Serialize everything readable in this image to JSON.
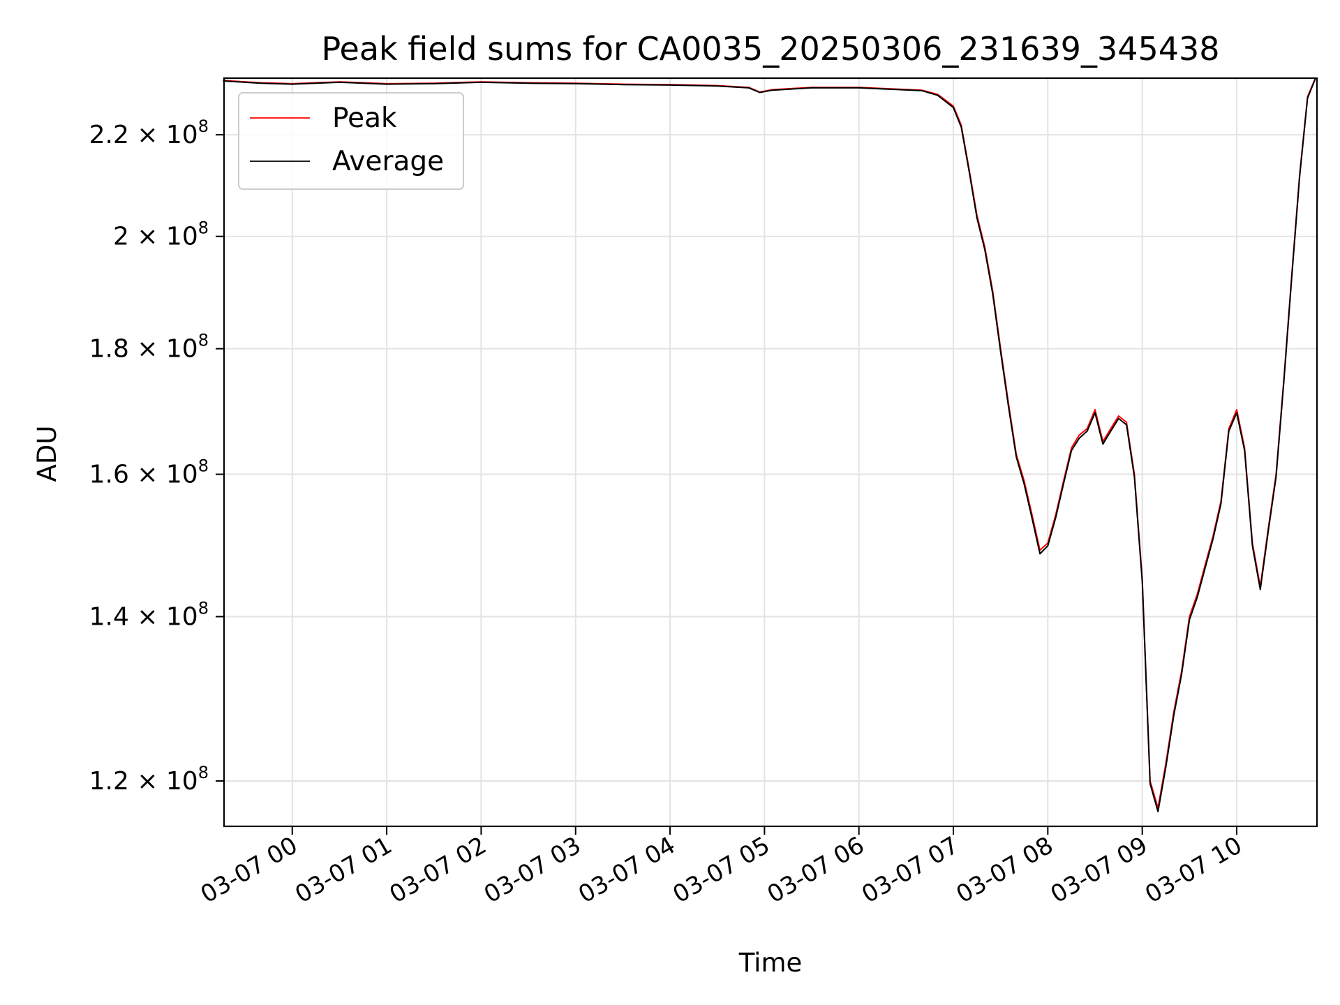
{
  "chart_data": {
    "type": "line",
    "title": "Peak field sums for CA0035_20250306_231639_345438",
    "xlabel": "Time",
    "ylabel": "ADU",
    "yscale": "log",
    "grid": true,
    "legend_position": "upper-left",
    "xlim": [
      "2025-03-06 23:16:39",
      "2025-03-07 10:51:00"
    ],
    "ylim": [
      115000000,
      232000000
    ],
    "x_ticks": [
      "2025-03-07 00:00",
      "2025-03-07 01:00",
      "2025-03-07 02:00",
      "2025-03-07 03:00",
      "2025-03-07 04:00",
      "2025-03-07 05:00",
      "2025-03-07 06:00",
      "2025-03-07 07:00",
      "2025-03-07 08:00",
      "2025-03-07 09:00",
      "2025-03-07 10:00"
    ],
    "x_tick_labels": [
      "03-07 00",
      "03-07 01",
      "03-07 02",
      "03-07 03",
      "03-07 04",
      "03-07 05",
      "03-07 06",
      "03-07 07",
      "03-07 08",
      "03-07 09",
      "03-07 10"
    ],
    "y_ticks": [
      120000000,
      140000000,
      160000000,
      180000000,
      200000000,
      220000000
    ],
    "y_tick_labels": [
      {
        "mantissa": "1.2",
        "exponent": "8"
      },
      {
        "mantissa": "1.4",
        "exponent": "8"
      },
      {
        "mantissa": "1.6",
        "exponent": "8"
      },
      {
        "mantissa": "1.8",
        "exponent": "8"
      },
      {
        "mantissa": "2",
        "exponent": "8"
      },
      {
        "mantissa": "2.2",
        "exponent": "8"
      }
    ],
    "series": [
      {
        "name": "Peak",
        "color": "#ff0000",
        "x": [
          "2025-03-06 23:16",
          "2025-03-06 23:40",
          "2025-03-07 00:00",
          "2025-03-07 00:30",
          "2025-03-07 01:00",
          "2025-03-07 01:30",
          "2025-03-07 02:00",
          "2025-03-07 02:30",
          "2025-03-07 03:00",
          "2025-03-07 03:30",
          "2025-03-07 04:00",
          "2025-03-07 04:30",
          "2025-03-07 04:50",
          "2025-03-07 04:57",
          "2025-03-07 05:05",
          "2025-03-07 05:30",
          "2025-03-07 06:00",
          "2025-03-07 06:20",
          "2025-03-07 06:40",
          "2025-03-07 06:50",
          "2025-03-07 07:00",
          "2025-03-07 07:05",
          "2025-03-07 07:10",
          "2025-03-07 07:15",
          "2025-03-07 07:20",
          "2025-03-07 07:25",
          "2025-03-07 07:30",
          "2025-03-07 07:35",
          "2025-03-07 07:40",
          "2025-03-07 07:45",
          "2025-03-07 07:50",
          "2025-03-07 07:55",
          "2025-03-07 08:00",
          "2025-03-07 08:05",
          "2025-03-07 08:10",
          "2025-03-07 08:15",
          "2025-03-07 08:20",
          "2025-03-07 08:25",
          "2025-03-07 08:30",
          "2025-03-07 08:35",
          "2025-03-07 08:40",
          "2025-03-07 08:45",
          "2025-03-07 08:50",
          "2025-03-07 08:55",
          "2025-03-07 09:00",
          "2025-03-07 09:05",
          "2025-03-07 09:10",
          "2025-03-07 09:15",
          "2025-03-07 09:20",
          "2025-03-07 09:25",
          "2025-03-07 09:30",
          "2025-03-07 09:35",
          "2025-03-07 09:40",
          "2025-03-07 09:45",
          "2025-03-07 09:50",
          "2025-03-07 09:55",
          "2025-03-07 10:00",
          "2025-03-07 10:05",
          "2025-03-07 10:10",
          "2025-03-07 10:15",
          "2025-03-07 10:20",
          "2025-03-07 10:25",
          "2025-03-07 10:30",
          "2025-03-07 10:35",
          "2025-03-07 10:40",
          "2025-03-07 10:45",
          "2025-03-07 10:50"
        ],
        "values": [
          231500000,
          231000000,
          230800000,
          231200000,
          230800000,
          230900000,
          231200000,
          231000000,
          230900000,
          230700000,
          230600000,
          230400000,
          230000000,
          229000000,
          229500000,
          230000000,
          230000000,
          229700000,
          229400000,
          228500000,
          226000000,
          222000000,
          213000000,
          204000000,
          198000000,
          190000000,
          180000000,
          171000000,
          163000000,
          159000000,
          154000000,
          149000000,
          150000000,
          154000000,
          159000000,
          164000000,
          166000000,
          167000000,
          170000000,
          165000000,
          167000000,
          169000000,
          168000000,
          160000000,
          145000000,
          120000000,
          117000000,
          122000000,
          128000000,
          133000000,
          140000000,
          143000000,
          147000000,
          151000000,
          156000000,
          167000000,
          170000000,
          164000000,
          150000000,
          144000000,
          152000000,
          160000000,
          175000000,
          193000000,
          212000000,
          228000000,
          232000000
        ]
      },
      {
        "name": "Average",
        "color": "#000000",
        "x": [
          "2025-03-06 23:16",
          "2025-03-06 23:40",
          "2025-03-07 00:00",
          "2025-03-07 00:30",
          "2025-03-07 01:00",
          "2025-03-07 01:30",
          "2025-03-07 02:00",
          "2025-03-07 02:30",
          "2025-03-07 03:00",
          "2025-03-07 03:30",
          "2025-03-07 04:00",
          "2025-03-07 04:30",
          "2025-03-07 04:50",
          "2025-03-07 04:57",
          "2025-03-07 05:05",
          "2025-03-07 05:30",
          "2025-03-07 06:00",
          "2025-03-07 06:20",
          "2025-03-07 06:40",
          "2025-03-07 06:50",
          "2025-03-07 07:00",
          "2025-03-07 07:05",
          "2025-03-07 07:10",
          "2025-03-07 07:15",
          "2025-03-07 07:20",
          "2025-03-07 07:25",
          "2025-03-07 07:30",
          "2025-03-07 07:35",
          "2025-03-07 07:40",
          "2025-03-07 07:45",
          "2025-03-07 07:50",
          "2025-03-07 07:55",
          "2025-03-07 08:00",
          "2025-03-07 08:05",
          "2025-03-07 08:10",
          "2025-03-07 08:15",
          "2025-03-07 08:20",
          "2025-03-07 08:25",
          "2025-03-07 08:30",
          "2025-03-07 08:35",
          "2025-03-07 08:40",
          "2025-03-07 08:45",
          "2025-03-07 08:50",
          "2025-03-07 08:55",
          "2025-03-07 09:00",
          "2025-03-07 09:05",
          "2025-03-07 09:10",
          "2025-03-07 09:15",
          "2025-03-07 09:20",
          "2025-03-07 09:25",
          "2025-03-07 09:30",
          "2025-03-07 09:35",
          "2025-03-07 09:40",
          "2025-03-07 09:45",
          "2025-03-07 09:50",
          "2025-03-07 09:55",
          "2025-03-07 10:00",
          "2025-03-07 10:05",
          "2025-03-07 10:10",
          "2025-03-07 10:15",
          "2025-03-07 10:20",
          "2025-03-07 10:25",
          "2025-03-07 10:30",
          "2025-03-07 10:35",
          "2025-03-07 10:40",
          "2025-03-07 10:45",
          "2025-03-07 10:50"
        ],
        "values": [
          231400000,
          230900000,
          230700000,
          231100000,
          230700000,
          230800000,
          231100000,
          230900000,
          230800000,
          230600000,
          230500000,
          230300000,
          229900000,
          228900000,
          229400000,
          229900000,
          229900000,
          229600000,
          229300000,
          228300000,
          225700000,
          221600000,
          212600000,
          203500000,
          197500000,
          189500000,
          179500000,
          170500000,
          162600000,
          158500000,
          153500000,
          148500000,
          149600000,
          153600000,
          158600000,
          163600000,
          165500000,
          166600000,
          169500000,
          164600000,
          166600000,
          168600000,
          167600000,
          159600000,
          144600000,
          119700000,
          116600000,
          121600000,
          127600000,
          132600000,
          139600000,
          142600000,
          146600000,
          150600000,
          155600000,
          166600000,
          169500000,
          163600000,
          149600000,
          143600000,
          151600000,
          159600000,
          174600000,
          192500000,
          211600000,
          227700000,
          231900000
        ]
      }
    ]
  }
}
